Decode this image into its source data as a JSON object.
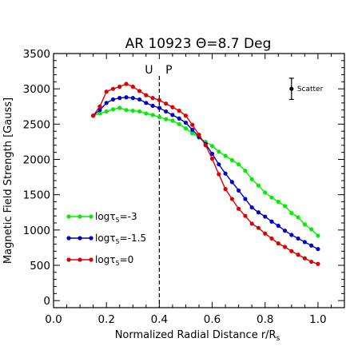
{
  "chart_data": {
    "type": "line",
    "title": "AR 10923 Θ=8.7 Deg",
    "xlabel": "Normalized Radial Distance r/R",
    "xlabel_subscript": "s",
    "ylabel": "Magnetic Field Strength [Gauss]",
    "xlim": [
      0.0,
      1.1
    ],
    "ylim": [
      -100,
      3500
    ],
    "xticks": [
      0.0,
      0.2,
      0.4,
      0.6,
      0.8,
      1.0
    ],
    "xtick_labels": [
      "0.0",
      "0.2",
      "0.4",
      "0.6",
      "0.8",
      "1.0"
    ],
    "yticks": [
      0,
      500,
      1000,
      1500,
      2000,
      2500,
      3000,
      3500
    ],
    "ytick_labels": [
      "0",
      "500",
      "1000",
      "1500",
      "2000",
      "2500",
      "3000",
      "3500"
    ],
    "grid": false,
    "legend_position": "lower-left",
    "boundary": {
      "x": 0.4,
      "left_label": "U",
      "right_label": "P"
    },
    "scatter_marker": {
      "label": "Scatter",
      "x": 0.9,
      "y": 3000,
      "err": 150
    },
    "series": [
      {
        "name_prefix": "logτ",
        "name_subscript": "5",
        "name_suffix": "=-3",
        "color": "#00ee00",
        "x": [
          0.15,
          0.175,
          0.2,
          0.225,
          0.25,
          0.275,
          0.3,
          0.325,
          0.35,
          0.375,
          0.4,
          0.425,
          0.45,
          0.475,
          0.5,
          0.525,
          0.55,
          0.575,
          0.6,
          0.625,
          0.65,
          0.675,
          0.7,
          0.725,
          0.75,
          0.775,
          0.8,
          0.825,
          0.85,
          0.875,
          0.9,
          0.925,
          0.95,
          0.975,
          1.0
        ],
        "y": [
          2620,
          2650,
          2680,
          2710,
          2730,
          2700,
          2690,
          2680,
          2650,
          2630,
          2600,
          2570,
          2550,
          2500,
          2440,
          2370,
          2310,
          2250,
          2190,
          2110,
          2050,
          1990,
          1930,
          1840,
          1720,
          1630,
          1530,
          1460,
          1400,
          1340,
          1240,
          1180,
          1080,
          1010,
          920
        ]
      },
      {
        "name_prefix": "logτ",
        "name_subscript": "5",
        "name_suffix": "=-1.5",
        "color": "#0000cc",
        "x": [
          0.15,
          0.175,
          0.2,
          0.225,
          0.25,
          0.275,
          0.3,
          0.325,
          0.35,
          0.375,
          0.4,
          0.425,
          0.45,
          0.475,
          0.5,
          0.525,
          0.55,
          0.575,
          0.6,
          0.625,
          0.65,
          0.675,
          0.7,
          0.725,
          0.75,
          0.775,
          0.8,
          0.825,
          0.85,
          0.875,
          0.9,
          0.925,
          0.95,
          0.975,
          1.0
        ],
        "y": [
          2620,
          2700,
          2800,
          2850,
          2870,
          2880,
          2870,
          2850,
          2800,
          2760,
          2730,
          2680,
          2630,
          2580,
          2520,
          2420,
          2320,
          2220,
          2080,
          1930,
          1800,
          1680,
          1560,
          1440,
          1320,
          1250,
          1190,
          1120,
          1060,
          990,
          930,
          880,
          830,
          780,
          730
        ]
      },
      {
        "name_prefix": "logτ",
        "name_subscript": "5",
        "name_suffix": "=0",
        "color": "#dd0000",
        "x": [
          0.15,
          0.175,
          0.2,
          0.225,
          0.25,
          0.275,
          0.3,
          0.325,
          0.35,
          0.375,
          0.4,
          0.425,
          0.45,
          0.475,
          0.5,
          0.525,
          0.55,
          0.575,
          0.6,
          0.625,
          0.65,
          0.675,
          0.7,
          0.725,
          0.75,
          0.775,
          0.8,
          0.825,
          0.85,
          0.875,
          0.9,
          0.925,
          0.95,
          0.975,
          1.0
        ],
        "y": [
          2620,
          2750,
          2960,
          3000,
          3030,
          3070,
          3030,
          2970,
          2910,
          2870,
          2840,
          2790,
          2740,
          2690,
          2620,
          2490,
          2350,
          2200,
          2010,
          1790,
          1580,
          1440,
          1300,
          1200,
          1090,
          1030,
          950,
          880,
          810,
          760,
          700,
          650,
          600,
          550,
          520
        ]
      }
    ]
  }
}
